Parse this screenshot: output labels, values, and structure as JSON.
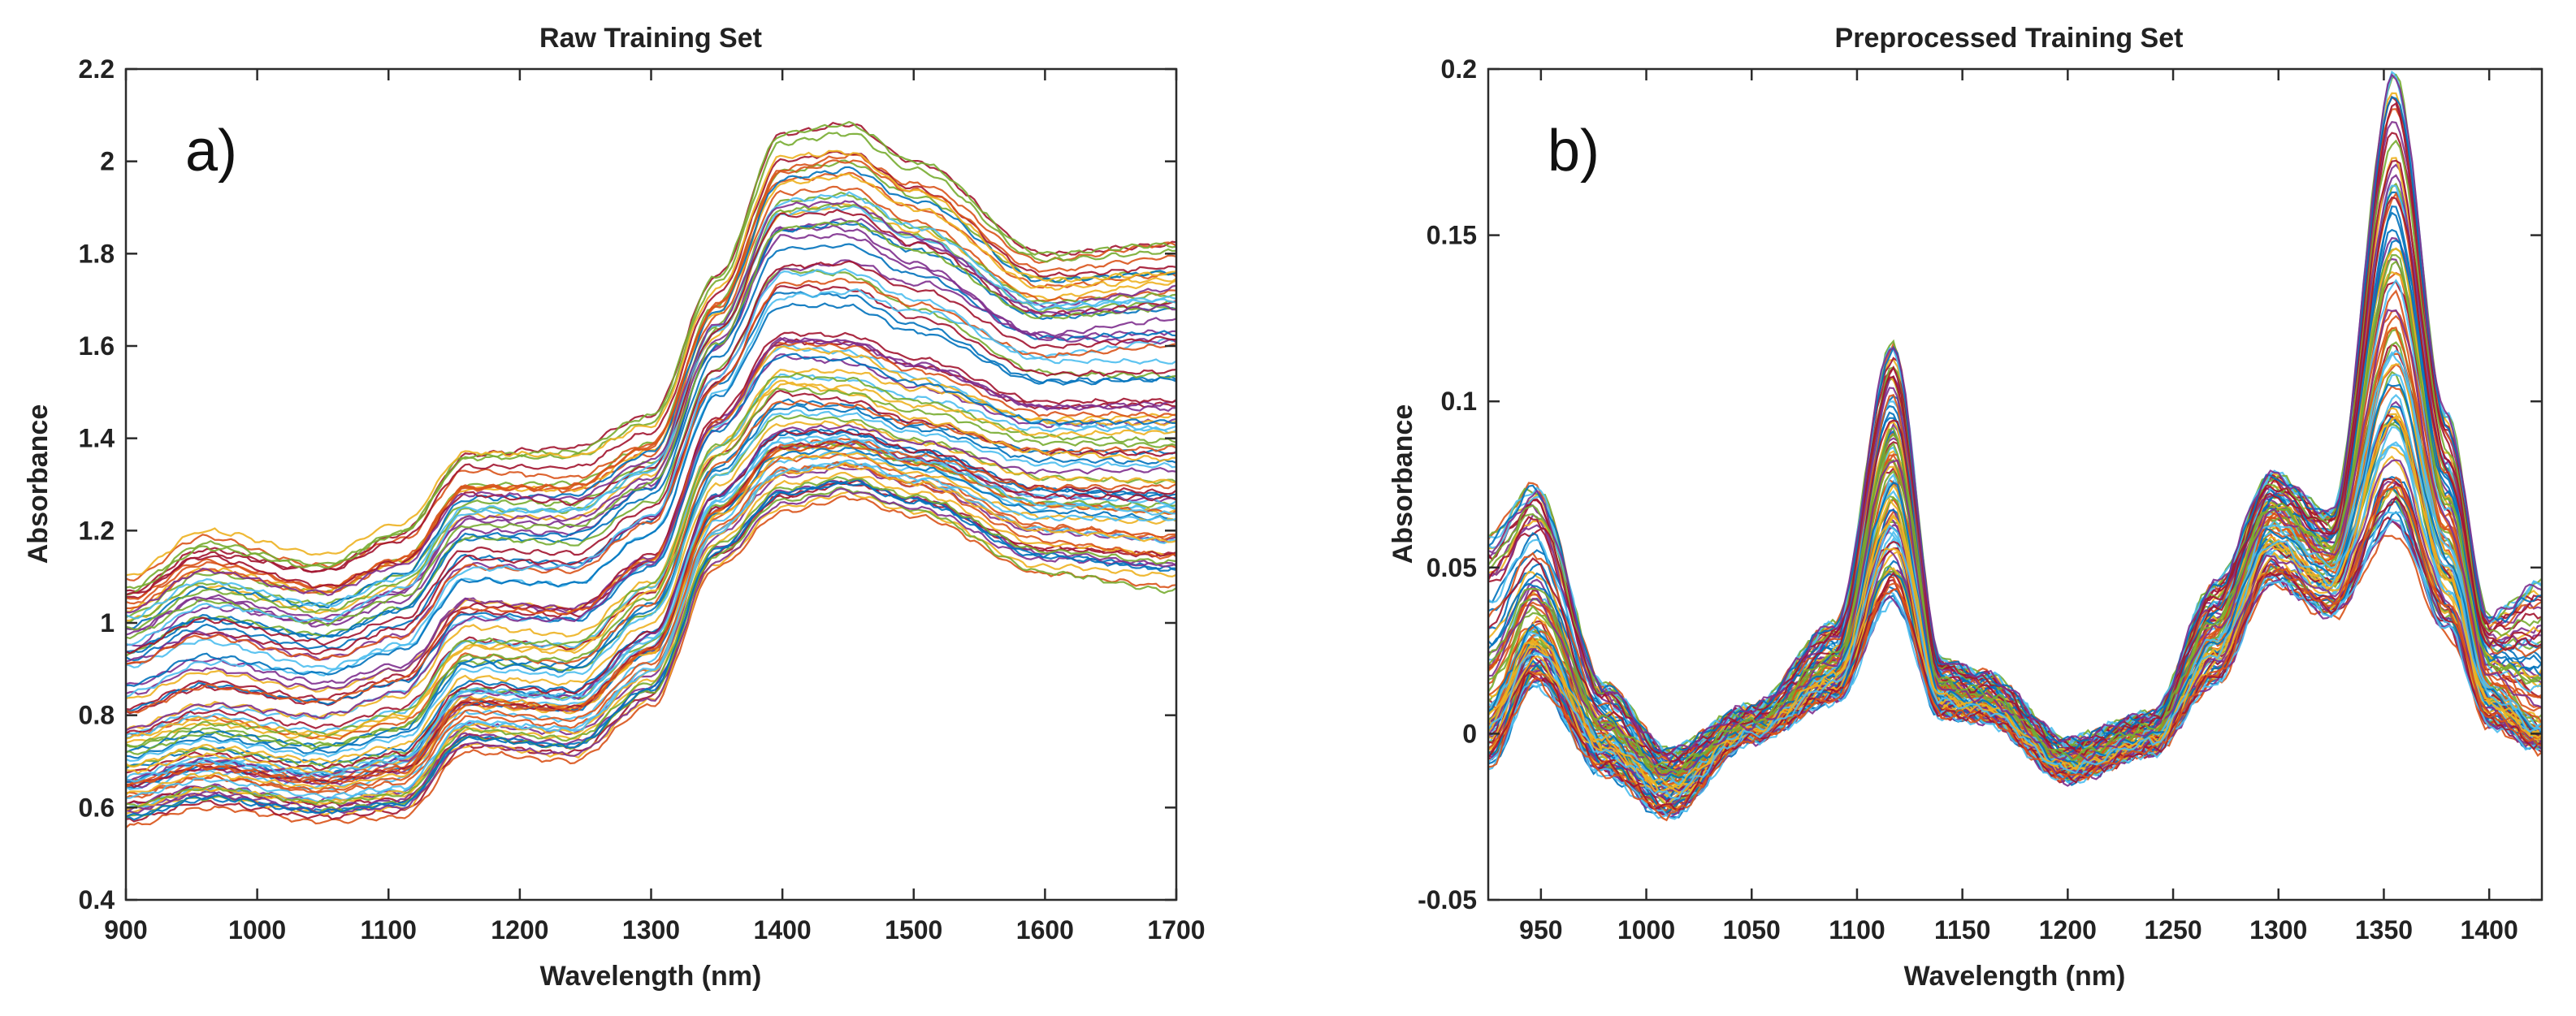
{
  "chart_data": [
    {
      "type": "line",
      "panel_label": "a)",
      "title": "Raw Training Set",
      "xlabel": "Wavelength (nm)",
      "ylabel": "Absorbance",
      "xlim": [
        900,
        1700
      ],
      "ylim": [
        0.4,
        2.2
      ],
      "xticks": [
        900,
        1000,
        1100,
        1200,
        1300,
        1400,
        1500,
        1600,
        1700
      ],
      "yticks": [
        0.4,
        0.6,
        0.8,
        1,
        1.2,
        1.4,
        1.6,
        1.8,
        2,
        2.2
      ],
      "xtick_labels": [
        "900",
        "1000",
        "1100",
        "1200",
        "1300",
        "1400",
        "1500",
        "1600",
        "1700"
      ],
      "ytick_labels": [
        "0.4",
        "0.6",
        "0.8",
        "1",
        "1.2",
        "1.4",
        "1.6",
        "1.8",
        "2",
        "2.2"
      ],
      "grid": false,
      "n_series": 90,
      "series_shape": {
        "x": [
          900,
          960,
          1050,
          1110,
          1160,
          1240,
          1300,
          1350,
          1400,
          1450,
          1500,
          1600,
          1700
        ],
        "typical": [
          0.73,
          0.77,
          0.74,
          0.78,
          0.93,
          0.92,
          1.05,
          1.35,
          1.49,
          1.48,
          1.44,
          1.38,
          1.38
        ],
        "lowest": [
          0.56,
          0.6,
          0.57,
          0.58,
          0.72,
          0.7,
          0.82,
          1.12,
          1.24,
          1.27,
          1.23,
          1.1,
          1.07
        ],
        "highest": [
          1.1,
          1.2,
          1.15,
          1.22,
          1.38,
          1.38,
          1.45,
          1.75,
          2.06,
          2.08,
          2.0,
          1.8,
          1.82
        ]
      }
    },
    {
      "type": "line",
      "panel_label": "b)",
      "title": "Preprocessed Training Set",
      "xlabel": "Wavelength (nm)",
      "ylabel": "Absorbance",
      "xlim": [
        925,
        1425
      ],
      "ylim": [
        -0.05,
        0.2
      ],
      "xticks": [
        950,
        1000,
        1050,
        1100,
        1150,
        1200,
        1250,
        1300,
        1350,
        1400
      ],
      "yticks": [
        -0.05,
        0,
        0.05,
        0.1,
        0.15,
        0.2
      ],
      "xtick_labels": [
        "950",
        "1000",
        "1050",
        "1100",
        "1150",
        "1200",
        "1250",
        "1300",
        "1350",
        "1400"
      ],
      "ytick_labels": [
        "-0.05",
        "0",
        "0.05",
        "0.1",
        "0.15",
        "0.2"
      ],
      "grid": false,
      "n_series": 90,
      "series_shape": {
        "x": [
          925,
          947,
          980,
          1010,
          1050,
          1090,
          1117,
          1140,
          1160,
          1200,
          1240,
          1270,
          1297,
          1325,
          1355,
          1380,
          1400,
          1425
        ],
        "typical": [
          0.01,
          0.033,
          0.0,
          -0.013,
          0.002,
          0.02,
          0.08,
          0.013,
          0.01,
          -0.008,
          0.0,
          0.03,
          0.065,
          0.052,
          0.12,
          0.06,
          0.015,
          0.003
        ],
        "lowest": [
          -0.01,
          0.015,
          -0.012,
          -0.025,
          -0.002,
          0.01,
          0.04,
          0.005,
          0.004,
          -0.014,
          -0.006,
          0.015,
          0.045,
          0.035,
          0.06,
          0.03,
          0.002,
          -0.005
        ],
        "highest": [
          0.06,
          0.075,
          0.015,
          -0.005,
          0.008,
          0.033,
          0.117,
          0.022,
          0.018,
          -0.002,
          0.006,
          0.045,
          0.078,
          0.066,
          0.198,
          0.095,
          0.035,
          0.045
        ]
      }
    }
  ]
}
